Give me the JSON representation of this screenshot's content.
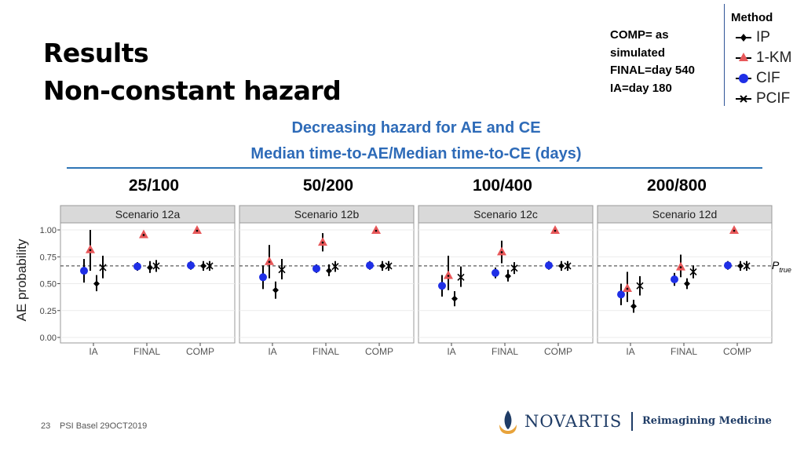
{
  "title": {
    "line1": "Results",
    "line2": "Non-constant hazard"
  },
  "note": {
    "lines": [
      "COMP= as",
      "simulated",
      "FINAL=day 540",
      "IA=day 180"
    ]
  },
  "legend": {
    "title": "Method",
    "items": [
      {
        "label": "IP",
        "marker": "diamond",
        "color": "#000000"
      },
      {
        "label": "1-KM",
        "marker": "triangle",
        "color": "#e8585a"
      },
      {
        "label": "CIF",
        "marker": "circle",
        "color": "#1f2fe6"
      },
      {
        "label": "PCIF",
        "marker": "x",
        "color": "#000000"
      }
    ]
  },
  "subtitle": {
    "line1": "Decreasing hazard for AE and CE",
    "line2": "Median time-to-AE/Median time-to-CE (days)"
  },
  "column_headers": [
    "25/100",
    "50/200",
    "100/400",
    "200/800"
  ],
  "ptrue": {
    "main": "P",
    "sub": "true"
  },
  "footer": {
    "page": "23",
    "text": "PSI Basel 29OCT2019"
  },
  "logo": {
    "brand": "NOVARTIS",
    "tagline": "Reimagining Medicine",
    "icon": "flame-icon"
  },
  "chart_data": {
    "type": "scatter",
    "ylabel": "AE probability",
    "ylim": [
      0,
      1.05
    ],
    "yticks": [
      "0.00",
      "0.25",
      "0.50",
      "0.75",
      "1.00"
    ],
    "ytick_values": [
      0,
      0.25,
      0.5,
      0.75,
      1.0
    ],
    "categories": [
      "IA",
      "FINAL",
      "COMP"
    ],
    "reference_line": 0.665,
    "methods": [
      "IP",
      "1-KM",
      "CIF",
      "PCIF"
    ],
    "colors": {
      "IP": "#000000",
      "1-KM": "#e8585a",
      "CIF": "#1f2fe6",
      "PCIF": "#000000",
      "panel_bg": "#ffffff",
      "strip_bg": "#d9d9d9"
    },
    "panels": [
      {
        "name": "Scenario 12a",
        "points": [
          {
            "cat": "IA",
            "method": "CIF",
            "y": 0.62,
            "lo": 0.51,
            "hi": 0.73
          },
          {
            "cat": "IA",
            "method": "1-KM",
            "y": 0.82,
            "lo": 0.62,
            "hi": 1.0
          },
          {
            "cat": "IA",
            "method": "IP",
            "y": 0.5,
            "lo": 0.43,
            "hi": 0.58
          },
          {
            "cat": "IA",
            "method": "PCIF",
            "y": 0.65,
            "lo": 0.55,
            "hi": 0.76
          },
          {
            "cat": "FINAL",
            "method": "CIF",
            "y": 0.66,
            "lo": 0.62,
            "hi": 0.7
          },
          {
            "cat": "FINAL",
            "method": "1-KM",
            "y": 0.96,
            "lo": 0.96,
            "hi": 0.96
          },
          {
            "cat": "FINAL",
            "method": "IP",
            "y": 0.65,
            "lo": 0.6,
            "hi": 0.71
          },
          {
            "cat": "FINAL",
            "method": "PCIF",
            "y": 0.665,
            "lo": 0.61,
            "hi": 0.72
          },
          {
            "cat": "COMP",
            "method": "CIF",
            "y": 0.67,
            "lo": 0.63,
            "hi": 0.71
          },
          {
            "cat": "COMP",
            "method": "1-KM",
            "y": 1.0,
            "lo": 1.0,
            "hi": 1.0
          },
          {
            "cat": "COMP",
            "method": "IP",
            "y": 0.665,
            "lo": 0.62,
            "hi": 0.71
          },
          {
            "cat": "COMP",
            "method": "PCIF",
            "y": 0.665,
            "lo": 0.62,
            "hi": 0.71
          }
        ]
      },
      {
        "name": "Scenario 12b",
        "points": [
          {
            "cat": "IA",
            "method": "CIF",
            "y": 0.56,
            "lo": 0.45,
            "hi": 0.67
          },
          {
            "cat": "IA",
            "method": "1-KM",
            "y": 0.71,
            "lo": 0.55,
            "hi": 0.86
          },
          {
            "cat": "IA",
            "method": "IP",
            "y": 0.44,
            "lo": 0.36,
            "hi": 0.52
          },
          {
            "cat": "IA",
            "method": "PCIF",
            "y": 0.63,
            "lo": 0.54,
            "hi": 0.73
          },
          {
            "cat": "FINAL",
            "method": "CIF",
            "y": 0.64,
            "lo": 0.6,
            "hi": 0.68
          },
          {
            "cat": "FINAL",
            "method": "1-KM",
            "y": 0.89,
            "lo": 0.8,
            "hi": 0.97
          },
          {
            "cat": "FINAL",
            "method": "IP",
            "y": 0.62,
            "lo": 0.57,
            "hi": 0.68
          },
          {
            "cat": "FINAL",
            "method": "PCIF",
            "y": 0.66,
            "lo": 0.61,
            "hi": 0.71
          },
          {
            "cat": "COMP",
            "method": "CIF",
            "y": 0.67,
            "lo": 0.63,
            "hi": 0.71
          },
          {
            "cat": "COMP",
            "method": "1-KM",
            "y": 1.0,
            "lo": 1.0,
            "hi": 1.0
          },
          {
            "cat": "COMP",
            "method": "IP",
            "y": 0.665,
            "lo": 0.62,
            "hi": 0.71
          },
          {
            "cat": "COMP",
            "method": "PCIF",
            "y": 0.665,
            "lo": 0.62,
            "hi": 0.71
          }
        ]
      },
      {
        "name": "Scenario 12c",
        "points": [
          {
            "cat": "IA",
            "method": "CIF",
            "y": 0.48,
            "lo": 0.38,
            "hi": 0.58
          },
          {
            "cat": "IA",
            "method": "1-KM",
            "y": 0.58,
            "lo": 0.44,
            "hi": 0.76
          },
          {
            "cat": "IA",
            "method": "IP",
            "y": 0.36,
            "lo": 0.29,
            "hi": 0.43
          },
          {
            "cat": "IA",
            "method": "PCIF",
            "y": 0.56,
            "lo": 0.47,
            "hi": 0.66
          },
          {
            "cat": "FINAL",
            "method": "CIF",
            "y": 0.6,
            "lo": 0.55,
            "hi": 0.65
          },
          {
            "cat": "FINAL",
            "method": "1-KM",
            "y": 0.8,
            "lo": 0.69,
            "hi": 0.9
          },
          {
            "cat": "FINAL",
            "method": "IP",
            "y": 0.57,
            "lo": 0.52,
            "hi": 0.63
          },
          {
            "cat": "FINAL",
            "method": "PCIF",
            "y": 0.645,
            "lo": 0.59,
            "hi": 0.7
          },
          {
            "cat": "COMP",
            "method": "CIF",
            "y": 0.67,
            "lo": 0.63,
            "hi": 0.71
          },
          {
            "cat": "COMP",
            "method": "1-KM",
            "y": 1.0,
            "lo": 1.0,
            "hi": 1.0
          },
          {
            "cat": "COMP",
            "method": "IP",
            "y": 0.665,
            "lo": 0.62,
            "hi": 0.71
          },
          {
            "cat": "COMP",
            "method": "PCIF",
            "y": 0.665,
            "lo": 0.62,
            "hi": 0.71
          }
        ]
      },
      {
        "name": "Scenario 12d",
        "points": [
          {
            "cat": "IA",
            "method": "CIF",
            "y": 0.4,
            "lo": 0.3,
            "hi": 0.5
          },
          {
            "cat": "IA",
            "method": "1-KM",
            "y": 0.46,
            "lo": 0.33,
            "hi": 0.61
          },
          {
            "cat": "IA",
            "method": "IP",
            "y": 0.29,
            "lo": 0.23,
            "hi": 0.35
          },
          {
            "cat": "IA",
            "method": "PCIF",
            "y": 0.48,
            "lo": 0.39,
            "hi": 0.57
          },
          {
            "cat": "FINAL",
            "method": "CIF",
            "y": 0.54,
            "lo": 0.48,
            "hi": 0.6
          },
          {
            "cat": "FINAL",
            "method": "1-KM",
            "y": 0.66,
            "lo": 0.56,
            "hi": 0.77
          },
          {
            "cat": "FINAL",
            "method": "IP",
            "y": 0.5,
            "lo": 0.45,
            "hi": 0.55
          },
          {
            "cat": "FINAL",
            "method": "PCIF",
            "y": 0.61,
            "lo": 0.55,
            "hi": 0.67
          },
          {
            "cat": "COMP",
            "method": "CIF",
            "y": 0.67,
            "lo": 0.63,
            "hi": 0.71
          },
          {
            "cat": "COMP",
            "method": "1-KM",
            "y": 1.0,
            "lo": 1.0,
            "hi": 1.0
          },
          {
            "cat": "COMP",
            "method": "IP",
            "y": 0.665,
            "lo": 0.62,
            "hi": 0.71
          },
          {
            "cat": "COMP",
            "method": "PCIF",
            "y": 0.665,
            "lo": 0.62,
            "hi": 0.71
          }
        ]
      }
    ]
  }
}
